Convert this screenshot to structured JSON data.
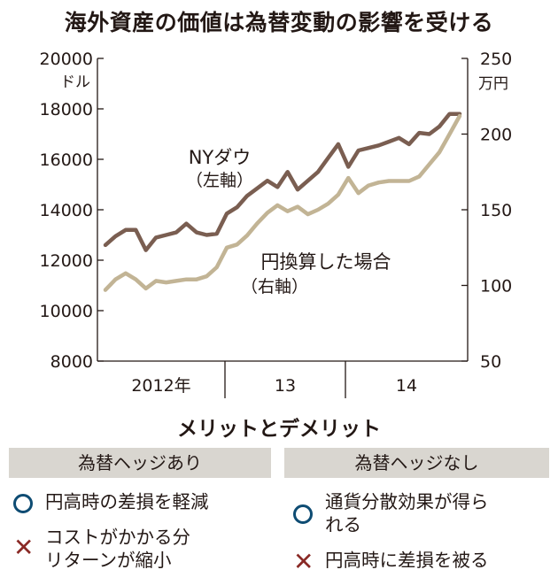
{
  "title": "海外資産の価値は為替変動の影響を受ける",
  "chart_data": {
    "type": "line",
    "title": "海外資産の価値は為替変動の影響を受ける",
    "x_categories": [
      "2012年",
      "13",
      "14"
    ],
    "y_left": {
      "unit": "ドル",
      "ylim": [
        8000,
        20000
      ],
      "ticks": [
        8000,
        10000,
        12000,
        14000,
        16000,
        18000,
        20000
      ]
    },
    "y_right": {
      "unit": "万円",
      "ylim": [
        50,
        250
      ],
      "ticks": [
        50,
        100,
        150,
        200,
        250
      ]
    },
    "series": [
      {
        "name": "NYダウ",
        "axis_note": "（左軸）",
        "axis": "left",
        "color": "#7a5e51",
        "x": [
          0,
          1,
          2,
          3,
          4,
          5,
          6,
          7,
          8,
          9,
          10,
          11,
          12,
          13,
          14,
          15,
          16,
          17,
          18,
          19,
          20,
          21,
          22,
          23,
          24,
          25,
          26,
          27,
          28,
          29,
          30,
          31,
          32,
          33,
          34,
          35
        ],
        "values": [
          12600,
          12950,
          13200,
          13200,
          12400,
          12900,
          13000,
          13100,
          13450,
          13100,
          13000,
          13050,
          13850,
          14100,
          14550,
          14850,
          15150,
          14900,
          15500,
          14800,
          15150,
          15500,
          16050,
          16600,
          15700,
          16350,
          16450,
          16550,
          16700,
          16850,
          16600,
          17050,
          17000,
          17300,
          17800,
          17800
        ]
      },
      {
        "name": "円換算した場合",
        "axis_note": "（右軸）",
        "axis": "right",
        "color": "#c2b495",
        "x": [
          0,
          1,
          2,
          3,
          4,
          5,
          6,
          7,
          8,
          9,
          10,
          11,
          12,
          13,
          14,
          15,
          16,
          17,
          18,
          19,
          20,
          21,
          22,
          23,
          24,
          25,
          26,
          27,
          28,
          29,
          30,
          31,
          32,
          33,
          34,
          35
        ],
        "values": [
          97,
          104,
          108,
          104,
          98,
          103,
          102,
          103,
          104,
          104,
          106,
          112,
          125,
          127,
          133,
          141,
          148,
          153,
          149,
          152,
          147,
          150,
          154,
          160,
          171,
          161,
          166,
          168,
          169,
          169,
          169,
          172,
          180,
          188,
          200,
          212
        ]
      }
    ],
    "grid": false
  },
  "merits": {
    "heading": "メリットとデメリット",
    "left": {
      "header": "為替ヘッジあり",
      "merit": "円高時の差損を軽減",
      "demerit": "コストがかかる分\nリターンが縮小"
    },
    "right": {
      "header": "為替ヘッジなし",
      "merit": "通貨分散効果が得ら\nれる",
      "demerit": "円高時に差損を被る"
    }
  }
}
